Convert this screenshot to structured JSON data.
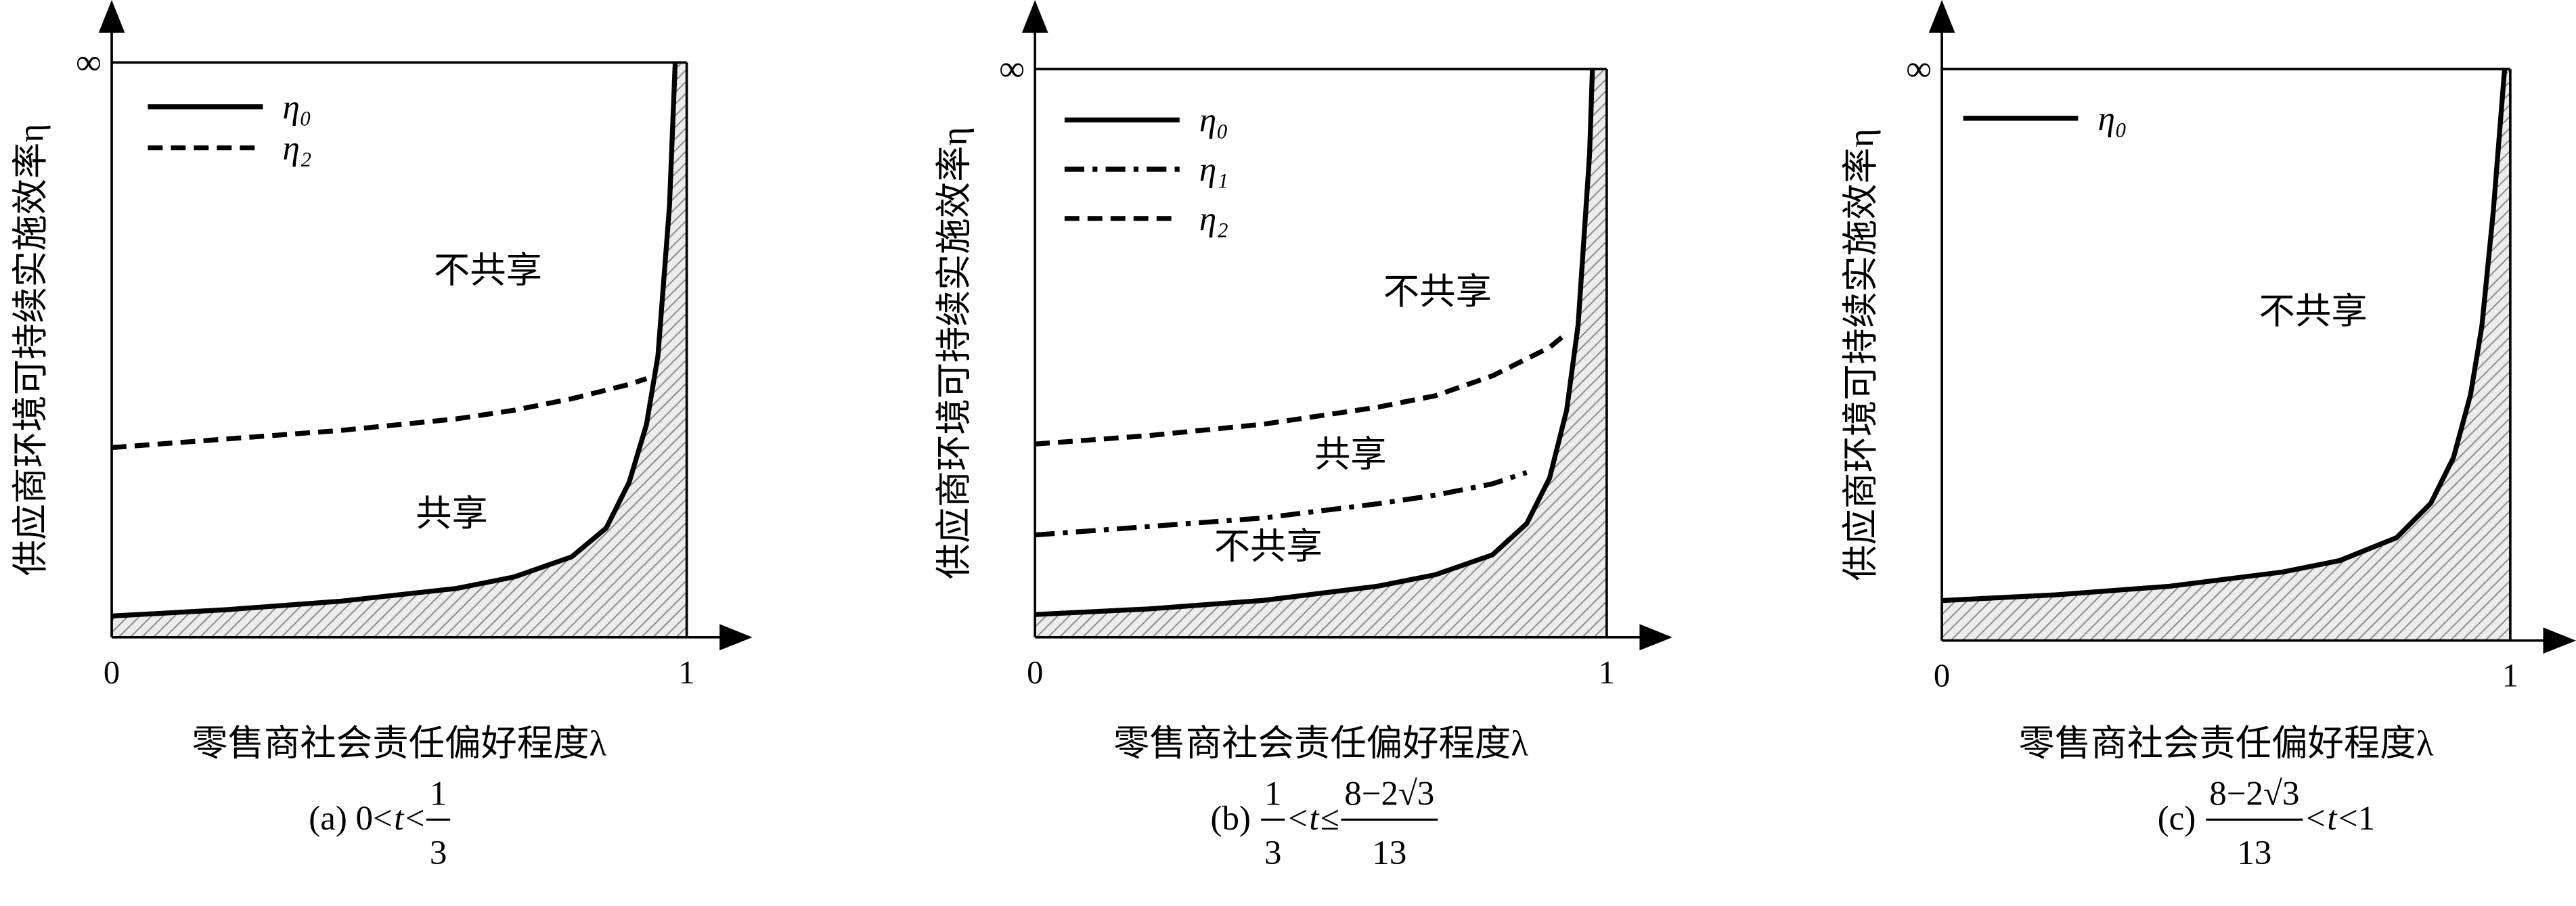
{
  "chart_data": [
    {
      "type": "line",
      "x_label": "零售商社会责任偏好程度λ",
      "y_label": "供应商环境可持续实施效率η",
      "xlim": [
        0,
        1
      ],
      "ylim": [
        0,
        1
      ],
      "xticks": [
        0,
        1
      ],
      "yticks": [
        {
          "value": 1,
          "label": "∞"
        }
      ],
      "x": [
        0,
        0.2,
        0.4,
        0.6,
        0.7,
        0.8,
        0.86,
        0.9,
        0.93,
        0.95,
        0.97,
        0.98
      ],
      "series": [
        {
          "name": "η₀",
          "color": "#000000",
          "style": "solid",
          "values": [
            0.037,
            0.048,
            0.063,
            0.085,
            0.105,
            0.14,
            0.19,
            0.27,
            0.37,
            0.49,
            0.75,
            1.0
          ]
        },
        {
          "name": "η₂",
          "color": "#000000",
          "style": "dashed",
          "values": [
            0.33,
            0.345,
            0.36,
            0.38,
            0.395,
            0.415,
            0.43,
            0.44,
            0.45,
            null,
            null,
            null
          ]
        }
      ],
      "shade_below": "η₀",
      "annotations": [
        "不共享",
        "共享"
      ],
      "caption": [
        {
          "text": "(a) 0<"
        },
        {
          "text": "t",
          "italic": true
        },
        {
          "text": "<"
        },
        {
          "num": "1",
          "den": "3"
        }
      ]
    },
    {
      "type": "line",
      "x_label": "零售商社会责任偏好程度λ",
      "y_label": "供应商环境可持续实施效率η",
      "xlim": [
        0,
        1
      ],
      "ylim": [
        0,
        1
      ],
      "xticks": [
        0,
        1
      ],
      "yticks": [
        {
          "value": 1,
          "label": "∞"
        }
      ],
      "x": [
        0,
        0.2,
        0.4,
        0.6,
        0.7,
        0.8,
        0.86,
        0.9,
        0.93,
        0.95,
        0.97,
        0.975
      ],
      "series": [
        {
          "name": "η₀",
          "color": "#000000",
          "style": "solid",
          "values": [
            0.04,
            0.05,
            0.065,
            0.09,
            0.11,
            0.145,
            0.2,
            0.28,
            0.4,
            0.55,
            0.85,
            1.0
          ]
        },
        {
          "name": "η₁",
          "color": "#000000",
          "style": "dashdot",
          "values": [
            0.18,
            0.195,
            0.21,
            0.235,
            0.25,
            0.27,
            0.29,
            null,
            null,
            null,
            null,
            null
          ]
        },
        {
          "name": "η₂",
          "color": "#000000",
          "style": "dashed",
          "values": [
            0.34,
            0.355,
            0.375,
            0.405,
            0.425,
            0.46,
            0.49,
            0.51,
            0.535,
            null,
            null,
            null
          ]
        }
      ],
      "shade_below": "η₀",
      "annotations": [
        "不共享",
        "共享",
        "不共享"
      ],
      "caption": [
        {
          "text": "(b) "
        },
        {
          "num": "1",
          "den": "3"
        },
        {
          "text": "<"
        },
        {
          "text": "t",
          "italic": true
        },
        {
          "text": "≤"
        },
        {
          "num": "8−2√3",
          "den": "13"
        }
      ]
    },
    {
      "type": "line",
      "x_label": "零售商社会责任偏好程度λ",
      "y_label": "供应商环境可持续实施效率η",
      "xlim": [
        0,
        1
      ],
      "ylim": [
        0,
        1
      ],
      "xticks": [
        0,
        1
      ],
      "yticks": [
        {
          "value": 1,
          "label": "∞"
        }
      ],
      "x": [
        0,
        0.2,
        0.4,
        0.6,
        0.7,
        0.8,
        0.86,
        0.9,
        0.93,
        0.95,
        0.97,
        0.99
      ],
      "series": [
        {
          "name": "η₀",
          "color": "#000000",
          "style": "solid",
          "values": [
            0.07,
            0.08,
            0.095,
            0.12,
            0.14,
            0.18,
            0.24,
            0.32,
            0.43,
            0.55,
            0.75,
            1.0
          ]
        }
      ],
      "shade_below": "η₀",
      "annotations": [
        "不共享"
      ],
      "caption": [
        {
          "text": "(c) "
        },
        {
          "num": "8−2√3",
          "den": "13"
        },
        {
          "text": "<"
        },
        {
          "text": "t",
          "italic": true
        },
        {
          "text": "<1"
        }
      ]
    }
  ]
}
